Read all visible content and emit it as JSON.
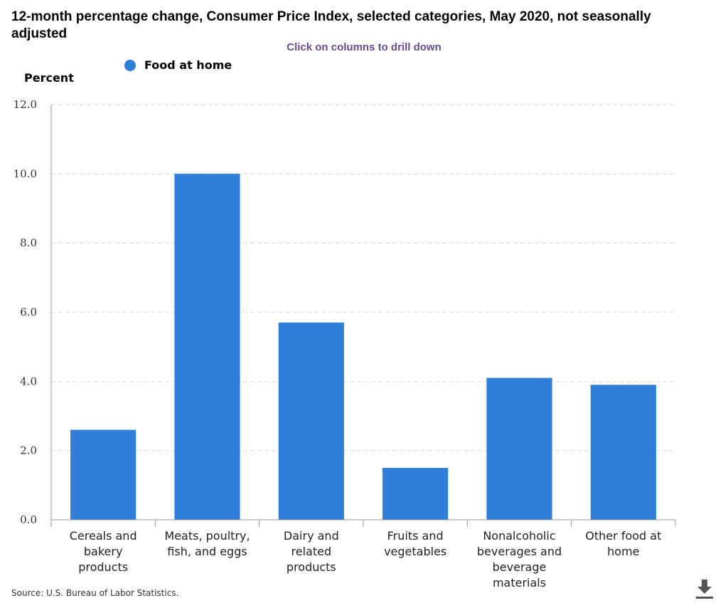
{
  "title": "12-month percentage change, Consumer Price Index, selected categories, May 2020, not seasonally adjusted",
  "subtitle": "Click on columns to drill down",
  "source": "Source: U.S. Bureau of Labor Statistics.",
  "colors": {
    "bar": "#2f7ed8",
    "subtitle": "#6a4a8c",
    "grid": "#d8d8d8",
    "axis": "#999999"
  },
  "icons": {
    "download": "download-icon"
  },
  "chart_data": {
    "type": "bar",
    "ylabel": "Percent",
    "xlabel": "",
    "ylim": [
      0,
      12
    ],
    "yticks": [
      "0.0",
      "2.0",
      "4.0",
      "6.0",
      "8.0",
      "10.0",
      "12.0"
    ],
    "grid": true,
    "legend": "top-left",
    "categories": [
      [
        "Cereals and",
        "bakery",
        "products"
      ],
      [
        "Meats, poultry,",
        "fish, and eggs"
      ],
      [
        "Dairy and",
        "related",
        "products"
      ],
      [
        "Fruits and",
        "vegetables"
      ],
      [
        "Nonalcoholic",
        "beverages and",
        "beverage",
        "materials"
      ],
      [
        "Other food at",
        "home"
      ]
    ],
    "series": [
      {
        "name": "Food at home",
        "values": [
          2.6,
          10.0,
          5.7,
          1.5,
          4.1,
          3.9
        ]
      }
    ]
  }
}
